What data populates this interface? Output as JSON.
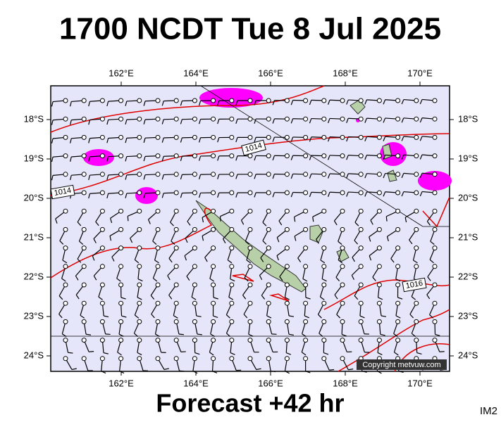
{
  "header": {
    "title": "1700 NCDT Tue 8 Jul 2025"
  },
  "footer": {
    "forecast": "Forecast +42 hr",
    "code": "IM2"
  },
  "axes": {
    "lon_labels": [
      "162°E",
      "164°E",
      "166°E",
      "168°E",
      "170°E"
    ],
    "lat_labels": [
      "18°S",
      "19°S",
      "20°S",
      "21°S",
      "22°S",
      "23°S",
      "24°S"
    ]
  },
  "isobar_labels": [
    "1014",
    "1014",
    "1016"
  ],
  "copyright": "Copyright metvuw.com"
}
